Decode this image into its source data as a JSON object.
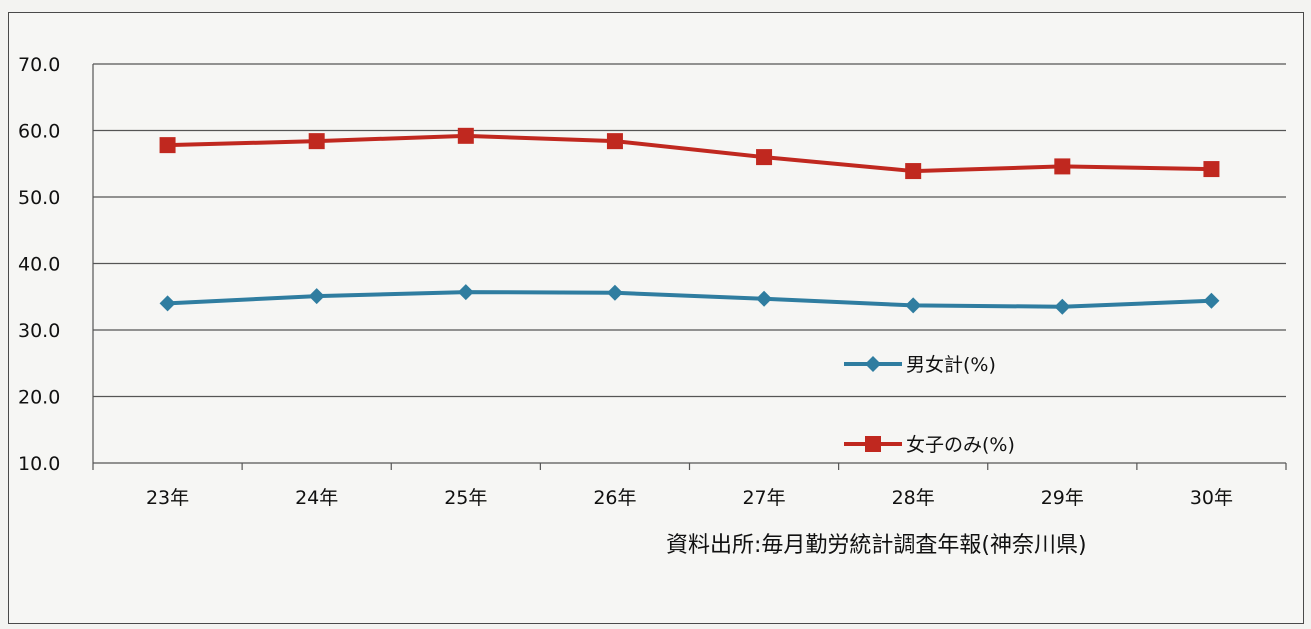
{
  "chart_data": {
    "type": "line",
    "categories": [
      "23年",
      "24年",
      "25年",
      "26年",
      "27年",
      "28年",
      "29年",
      "30年"
    ],
    "series": [
      {
        "name": "男女計(%)",
        "values": [
          34.0,
          35.1,
          35.7,
          35.6,
          34.7,
          33.7,
          33.5,
          34.4
        ],
        "color": "#2f7da0",
        "marker": "diamond"
      },
      {
        "name": "女子のみ(%)",
        "values": [
          57.8,
          58.4,
          59.2,
          58.4,
          56.0,
          53.9,
          54.6,
          54.2
        ],
        "color": "#c0281f",
        "marker": "square"
      }
    ],
    "ylim": [
      10.0,
      70.0
    ],
    "yticks": [
      "70.0",
      "60.0",
      "50.0",
      "40.0",
      "30.0",
      "20.0",
      "10.0"
    ],
    "grid": true,
    "legend_position": "inside-right",
    "annotation": "資料出所:毎月勤労統計調査年報(神奈川県)"
  }
}
